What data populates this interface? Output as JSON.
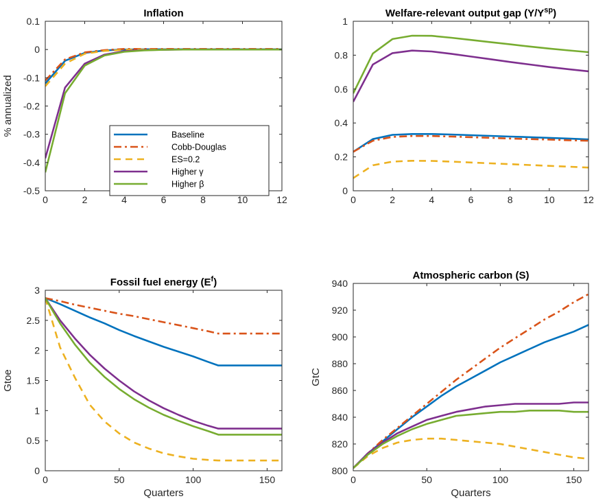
{
  "figure": {
    "series_styles": [
      {
        "name": "Baseline",
        "color": "#0072BD",
        "dash": "solid"
      },
      {
        "name": "Cobb-Douglas",
        "color": "#D95319",
        "dash": "dashdot"
      },
      {
        "name": "ES=0.2",
        "color": "#EDB120",
        "dash": "dashed"
      },
      {
        "name": "Higher γ",
        "color": "#7E2F8E",
        "dash": "solid"
      },
      {
        "name": "Higher β",
        "color": "#77AC30",
        "dash": "solid"
      }
    ]
  },
  "chart_data": [
    {
      "type": "line",
      "title": "Inflation",
      "xlabel": "",
      "ylabel": "% annualized",
      "xlim": [
        0,
        12
      ],
      "ylim": [
        -0.5,
        0.1
      ],
      "xticks": [
        "0",
        "2",
        "4",
        "6",
        "8",
        "10",
        "12"
      ],
      "yticks": [
        "0.1",
        "0",
        "-0.1",
        "-0.2",
        "-0.3",
        "-0.4",
        "-0.5"
      ],
      "legend": {
        "location": "center-right",
        "entries": [
          "Baseline",
          "Cobb-Douglas",
          "ES=0.2",
          "Higher γ",
          "Higher β"
        ]
      },
      "x": [
        0,
        1,
        2,
        3,
        4,
        5,
        6,
        7,
        8,
        9,
        10,
        11,
        12
      ],
      "series": [
        {
          "name": "Baseline",
          "values": [
            -0.12,
            -0.04,
            -0.012,
            -0.003,
            0.0,
            0.001,
            0.001,
            0.001,
            0.001,
            0.001,
            0.001,
            0.001,
            0.001
          ]
        },
        {
          "name": "Cobb-Douglas",
          "values": [
            -0.11,
            -0.035,
            -0.01,
            -0.002,
            0.002,
            0.002,
            0.002,
            0.002,
            0.002,
            0.002,
            0.002,
            0.002,
            0.002
          ]
        },
        {
          "name": "ES=0.2",
          "values": [
            -0.13,
            -0.05,
            -0.015,
            -0.005,
            -0.001,
            0.0,
            0.0,
            0.0,
            0.0,
            0.0,
            0.0,
            0.0,
            0.0
          ]
        },
        {
          "name": "Higher γ",
          "values": [
            -0.385,
            -0.135,
            -0.05,
            -0.018,
            -0.006,
            -0.002,
            -0.001,
            0.0,
            0.0,
            0.0,
            0.0,
            0.0,
            0.0
          ]
        },
        {
          "name": "Higher β",
          "values": [
            -0.435,
            -0.155,
            -0.057,
            -0.021,
            -0.008,
            -0.003,
            -0.001,
            0.0,
            0.0,
            0.0,
            0.0,
            0.0,
            0.0
          ]
        }
      ]
    },
    {
      "type": "line",
      "title": "Welfare-relevant output gap (Y/Y",
      "title_superscript": "sp",
      "title_suffix": ")",
      "xlabel": "",
      "ylabel": "",
      "xlim": [
        0,
        12
      ],
      "ylim": [
        0,
        1
      ],
      "xticks": [
        "0",
        "2",
        "4",
        "6",
        "8",
        "10",
        "12"
      ],
      "yticks": [
        "1",
        "0.8",
        "0.6",
        "0.4",
        "0.2",
        "0"
      ],
      "x": [
        0,
        1,
        2,
        3,
        4,
        5,
        6,
        7,
        8,
        9,
        10,
        11,
        12
      ],
      "series": [
        {
          "name": "Baseline",
          "values": [
            0.23,
            0.305,
            0.33,
            0.335,
            0.335,
            0.332,
            0.328,
            0.324,
            0.32,
            0.316,
            0.312,
            0.308,
            0.303
          ]
        },
        {
          "name": "Cobb-Douglas",
          "values": [
            0.23,
            0.295,
            0.318,
            0.323,
            0.323,
            0.32,
            0.316,
            0.312,
            0.308,
            0.305,
            0.302,
            0.298,
            0.295
          ]
        },
        {
          "name": "ES=0.2",
          "values": [
            0.075,
            0.15,
            0.172,
            0.177,
            0.176,
            0.172,
            0.167,
            0.162,
            0.157,
            0.152,
            0.147,
            0.142,
            0.137
          ]
        },
        {
          "name": "Higher γ",
          "values": [
            0.525,
            0.745,
            0.812,
            0.827,
            0.822,
            0.808,
            0.792,
            0.776,
            0.76,
            0.745,
            0.73,
            0.717,
            0.705
          ]
        },
        {
          "name": "Higher β",
          "values": [
            0.575,
            0.81,
            0.895,
            0.915,
            0.914,
            0.903,
            0.89,
            0.877,
            0.864,
            0.851,
            0.839,
            0.828,
            0.818
          ]
        }
      ]
    },
    {
      "type": "line",
      "title": "Fossil fuel energy (E",
      "title_superscript": "f",
      "title_suffix": ")",
      "xlabel": "Quarters",
      "ylabel": "Gtoe",
      "xlim": [
        0,
        160
      ],
      "ylim": [
        0,
        3
      ],
      "xticks": [
        "0",
        "50",
        "100",
        "150"
      ],
      "yticks": [
        "3",
        "2.5",
        "2",
        "1.5",
        "1",
        "0.5",
        "0"
      ],
      "x": [
        0,
        10,
        20,
        30,
        40,
        50,
        60,
        70,
        80,
        90,
        100,
        110,
        117,
        120,
        130,
        140,
        150,
        160
      ],
      "series": [
        {
          "name": "Baseline",
          "values": [
            2.87,
            2.77,
            2.66,
            2.55,
            2.45,
            2.34,
            2.24,
            2.15,
            2.06,
            1.98,
            1.9,
            1.81,
            1.75,
            1.75,
            1.75,
            1.75,
            1.75,
            1.75
          ]
        },
        {
          "name": "Cobb-Douglas",
          "values": [
            2.87,
            2.82,
            2.76,
            2.71,
            2.66,
            2.61,
            2.57,
            2.52,
            2.47,
            2.42,
            2.37,
            2.32,
            2.28,
            2.28,
            2.28,
            2.28,
            2.28,
            2.28
          ]
        },
        {
          "name": "ES=0.2",
          "values": [
            2.87,
            2.05,
            1.55,
            1.1,
            0.82,
            0.62,
            0.47,
            0.37,
            0.29,
            0.24,
            0.2,
            0.18,
            0.17,
            0.17,
            0.17,
            0.17,
            0.17,
            0.17
          ]
        },
        {
          "name": "Higher γ",
          "values": [
            2.87,
            2.5,
            2.2,
            1.93,
            1.7,
            1.5,
            1.32,
            1.17,
            1.04,
            0.93,
            0.83,
            0.75,
            0.7,
            0.7,
            0.7,
            0.7,
            0.7,
            0.7
          ]
        },
        {
          "name": "Higher β",
          "values": [
            2.87,
            2.45,
            2.1,
            1.8,
            1.56,
            1.36,
            1.19,
            1.05,
            0.93,
            0.83,
            0.74,
            0.66,
            0.6,
            0.6,
            0.6,
            0.6,
            0.6,
            0.6
          ]
        }
      ]
    },
    {
      "type": "line",
      "title": "Atmospheric carbon (S)",
      "xlabel": "Quarters",
      "ylabel": "GtC",
      "xlim": [
        0,
        160
      ],
      "ylim": [
        800,
        940
      ],
      "xticks": [
        "0",
        "50",
        "100",
        "150"
      ],
      "yticks": [
        "940",
        "920",
        "900",
        "880",
        "860",
        "840",
        "820",
        "800"
      ],
      "x": [
        0,
        10,
        20,
        30,
        40,
        50,
        60,
        70,
        80,
        90,
        100,
        110,
        120,
        130,
        140,
        150,
        160
      ],
      "series": [
        {
          "name": "Baseline",
          "values": [
            802,
            813,
            822,
            831,
            840,
            848,
            856,
            863,
            869,
            875,
            881,
            886,
            891,
            896,
            900,
            904,
            909
          ]
        },
        {
          "name": "Cobb-Douglas",
          "values": [
            802,
            813,
            823,
            832,
            841,
            850,
            859,
            868,
            876,
            884,
            892,
            899,
            906,
            913,
            919,
            926,
            932
          ]
        },
        {
          "name": "ES=0.2",
          "values": [
            802,
            811,
            817,
            821,
            823,
            824,
            824,
            823,
            822,
            821,
            820,
            818,
            816,
            814,
            812,
            810,
            809
          ]
        },
        {
          "name": "Higher γ",
          "values": [
            802,
            813,
            821,
            828,
            833,
            838,
            841,
            844,
            846,
            848,
            849,
            850,
            850,
            850,
            850,
            851,
            851
          ]
        },
        {
          "name": "Higher β",
          "values": [
            802,
            812,
            820,
            826,
            831,
            835,
            838,
            841,
            842,
            843,
            844,
            844,
            845,
            845,
            845,
            844,
            844
          ]
        }
      ]
    }
  ]
}
